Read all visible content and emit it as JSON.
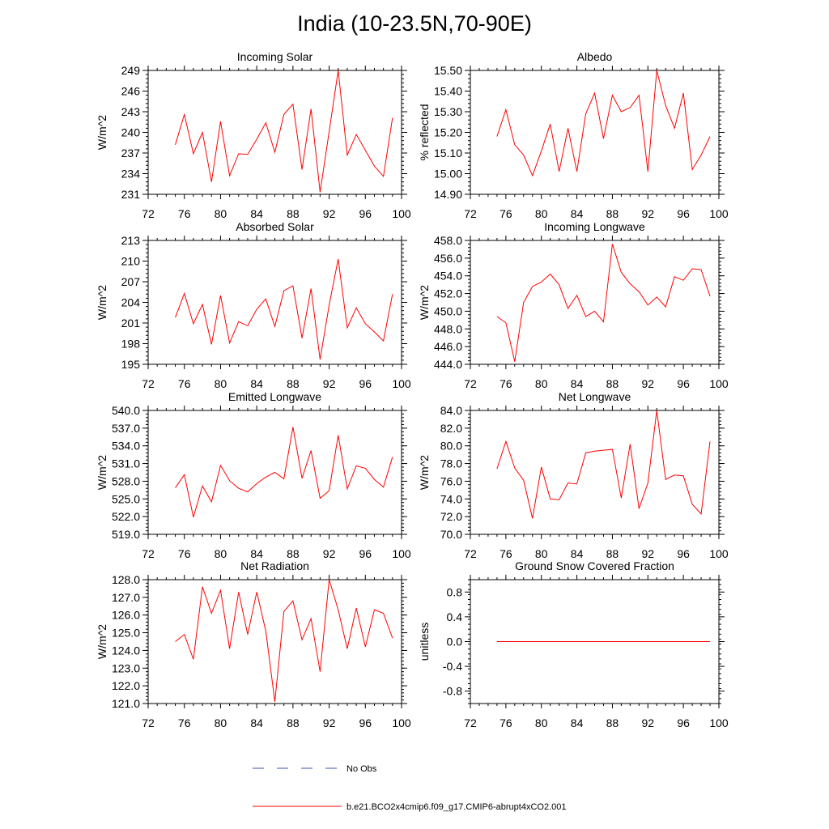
{
  "title": "India (10-23.5N,70-90E)",
  "legend": [
    {
      "label": "No Obs",
      "color": "#3b4fb0",
      "style": "dashed"
    },
    {
      "label": "b.e21.BCO2x4cmip6.f09_g17.CMIP6-abrupt4xCO2.001",
      "color": "#ff0000",
      "style": "solid"
    }
  ],
  "chart_data": [
    {
      "type": "line",
      "title": "Incoming Solar",
      "ylabel": "W/m^2",
      "xlim": [
        72,
        100
      ],
      "xticks": [
        "72",
        "76",
        "80",
        "84",
        "88",
        "92",
        "96",
        "100"
      ],
      "ylim": [
        231,
        249
      ],
      "yticks": [
        "231",
        "234",
        "237",
        "240",
        "243",
        "246",
        "249"
      ],
      "x": [
        75,
        76,
        77,
        78,
        79,
        80,
        81,
        82,
        83,
        84,
        85,
        86,
        87,
        88,
        89,
        90,
        91,
        92,
        93,
        94,
        95,
        96,
        97,
        98,
        99
      ],
      "series": [
        {
          "color": "#ff0000",
          "values": [
            238.2,
            242.6,
            236.9,
            240.0,
            232.8,
            241.6,
            233.7,
            236.9,
            236.8,
            239.0,
            241.4,
            237.1,
            242.6,
            244.1,
            234.6,
            243.4,
            231.3,
            240.1,
            249.0,
            236.7,
            239.7,
            237.4,
            235.1,
            233.6,
            242.1
          ]
        }
      ]
    },
    {
      "type": "line",
      "title": "Albedo",
      "ylabel": "% reflected",
      "xlim": [
        72,
        100
      ],
      "xticks": [
        "72",
        "76",
        "80",
        "84",
        "88",
        "92",
        "96",
        "100"
      ],
      "ylim": [
        14.9,
        15.5
      ],
      "yticks": [
        "14.90",
        "15.00",
        "15.10",
        "15.20",
        "15.30",
        "15.40",
        "15.50"
      ],
      "x": [
        75,
        76,
        77,
        78,
        79,
        80,
        81,
        82,
        83,
        84,
        85,
        86,
        87,
        88,
        89,
        90,
        91,
        92,
        93,
        94,
        95,
        96,
        97,
        98,
        99
      ],
      "series": [
        {
          "color": "#ff0000",
          "values": [
            15.18,
            15.31,
            15.14,
            15.09,
            14.99,
            15.11,
            15.24,
            15.01,
            15.22,
            15.01,
            15.29,
            15.39,
            15.17,
            15.38,
            15.3,
            15.32,
            15.38,
            15.01,
            15.5,
            15.33,
            15.22,
            15.39,
            15.02,
            15.09,
            15.18
          ]
        }
      ]
    },
    {
      "type": "line",
      "title": "Absorbed Solar",
      "ylabel": "W/m^2",
      "xlim": [
        72,
        100
      ],
      "xticks": [
        "72",
        "76",
        "80",
        "84",
        "88",
        "92",
        "96",
        "100"
      ],
      "ylim": [
        195,
        213
      ],
      "yticks": [
        "195",
        "198",
        "201",
        "204",
        "207",
        "210",
        "213"
      ],
      "x": [
        75,
        76,
        77,
        78,
        79,
        80,
        81,
        82,
        83,
        84,
        85,
        86,
        87,
        88,
        89,
        90,
        91,
        92,
        93,
        94,
        95,
        96,
        97,
        98,
        99
      ],
      "series": [
        {
          "color": "#ff0000",
          "values": [
            201.8,
            205.3,
            200.9,
            203.7,
            197.9,
            205.0,
            198.1,
            201.2,
            200.6,
            203.0,
            204.5,
            200.5,
            205.7,
            206.4,
            198.8,
            206.0,
            195.7,
            203.6,
            210.3,
            200.3,
            203.2,
            200.9,
            199.7,
            198.4,
            205.2
          ]
        }
      ]
    },
    {
      "type": "line",
      "title": "Incoming Longwave",
      "ylabel": "W/m^2",
      "xlim": [
        72,
        100
      ],
      "xticks": [
        "72",
        "76",
        "80",
        "84",
        "88",
        "92",
        "96",
        "100"
      ],
      "ylim": [
        444.0,
        458.0
      ],
      "yticks": [
        "444.0",
        "446.0",
        "448.0",
        "450.0",
        "452.0",
        "454.0",
        "456.0",
        "458.0"
      ],
      "x": [
        75,
        76,
        77,
        78,
        79,
        80,
        81,
        82,
        83,
        84,
        85,
        86,
        87,
        88,
        89,
        90,
        91,
        92,
        93,
        94,
        95,
        96,
        97,
        98,
        99
      ],
      "series": [
        {
          "color": "#ff0000",
          "values": [
            449.4,
            448.7,
            444.3,
            451.0,
            452.8,
            453.3,
            454.2,
            453.0,
            450.3,
            451.8,
            449.4,
            450.0,
            448.8,
            457.6,
            454.4,
            453.1,
            452.2,
            450.7,
            451.6,
            450.5,
            453.9,
            453.5,
            454.8,
            454.7,
            451.7
          ]
        }
      ]
    },
    {
      "type": "line",
      "title": "Emitted Longwave",
      "ylabel": "W/m^2",
      "xlim": [
        72,
        100
      ],
      "xticks": [
        "72",
        "76",
        "80",
        "84",
        "88",
        "92",
        "96",
        "100"
      ],
      "ylim": [
        519.0,
        540.0
      ],
      "yticks": [
        "519.0",
        "522.0",
        "525.0",
        "528.0",
        "531.0",
        "534.0",
        "537.0",
        "540.0"
      ],
      "x": [
        75,
        76,
        77,
        78,
        79,
        80,
        81,
        82,
        83,
        84,
        85,
        86,
        87,
        88,
        89,
        90,
        91,
        92,
        93,
        94,
        95,
        96,
        97,
        98,
        99
      ],
      "series": [
        {
          "color": "#ff0000",
          "values": [
            526.9,
            529.1,
            521.9,
            527.2,
            524.5,
            530.7,
            528.1,
            526.8,
            526.2,
            527.6,
            528.7,
            529.5,
            528.4,
            537.2,
            528.5,
            533.2,
            525.1,
            526.4,
            535.8,
            526.7,
            530.6,
            530.2,
            528.3,
            527.0,
            532.1
          ]
        }
      ]
    },
    {
      "type": "line",
      "title": "Net Longwave",
      "ylabel": "W/m^2",
      "xlim": [
        72,
        100
      ],
      "xticks": [
        "72",
        "76",
        "80",
        "84",
        "88",
        "92",
        "96",
        "100"
      ],
      "ylim": [
        70.0,
        84.0
      ],
      "yticks": [
        "70.0",
        "72.0",
        "74.0",
        "76.0",
        "78.0",
        "80.0",
        "82.0",
        "84.0"
      ],
      "x": [
        75,
        76,
        77,
        78,
        79,
        80,
        81,
        82,
        83,
        84,
        85,
        86,
        87,
        88,
        89,
        90,
        91,
        92,
        93,
        94,
        95,
        96,
        97,
        98,
        99
      ],
      "series": [
        {
          "color": "#ff0000",
          "values": [
            77.4,
            80.5,
            77.5,
            76.1,
            71.8,
            77.6,
            74.0,
            73.9,
            75.8,
            75.7,
            79.2,
            79.4,
            79.5,
            79.6,
            74.1,
            80.2,
            72.9,
            75.8,
            84.0,
            76.2,
            76.7,
            76.6,
            73.4,
            72.3,
            80.5
          ]
        }
      ]
    },
    {
      "type": "line",
      "title": "Net Radiation",
      "ylabel": "W/m^2",
      "xlim": [
        72,
        100
      ],
      "xticks": [
        "72",
        "76",
        "80",
        "84",
        "88",
        "92",
        "96",
        "100"
      ],
      "ylim": [
        121.0,
        128.0
      ],
      "yticks": [
        "121.0",
        "122.0",
        "123.0",
        "124.0",
        "125.0",
        "126.0",
        "127.0",
        "128.0"
      ],
      "x": [
        75,
        76,
        77,
        78,
        79,
        80,
        81,
        82,
        83,
        84,
        85,
        86,
        87,
        88,
        89,
        90,
        91,
        92,
        93,
        94,
        95,
        96,
        97,
        98,
        99
      ],
      "series": [
        {
          "color": "#ff0000",
          "values": [
            124.5,
            124.9,
            123.5,
            127.6,
            126.1,
            127.4,
            124.1,
            127.3,
            124.9,
            127.3,
            125.1,
            121.1,
            126.2,
            126.8,
            124.6,
            125.8,
            122.8,
            128.0,
            126.3,
            124.1,
            126.4,
            124.2,
            126.3,
            126.1,
            124.7
          ]
        }
      ]
    },
    {
      "type": "line",
      "title": "Ground Snow Covered Fraction",
      "ylabel": "unitless",
      "xlim": [
        72,
        100
      ],
      "xticks": [
        "72",
        "76",
        "80",
        "84",
        "88",
        "92",
        "96",
        "100"
      ],
      "ylim": [
        -1.0,
        1.0
      ],
      "yticks": [
        "-0.8",
        "-0.4",
        "0.0",
        "0.4",
        "0.8"
      ],
      "ytick_values": [
        -0.8,
        -0.4,
        0.0,
        0.4,
        0.8
      ],
      "x": [
        75,
        76,
        77,
        78,
        79,
        80,
        81,
        82,
        83,
        84,
        85,
        86,
        87,
        88,
        89,
        90,
        91,
        92,
        93,
        94,
        95,
        96,
        97,
        98,
        99
      ],
      "series": [
        {
          "color": "#ff0000",
          "values": [
            0,
            0,
            0,
            0,
            0,
            0,
            0,
            0,
            0,
            0,
            0,
            0,
            0,
            0,
            0,
            0,
            0,
            0,
            0,
            0,
            0,
            0,
            0,
            0,
            0
          ]
        }
      ]
    }
  ]
}
